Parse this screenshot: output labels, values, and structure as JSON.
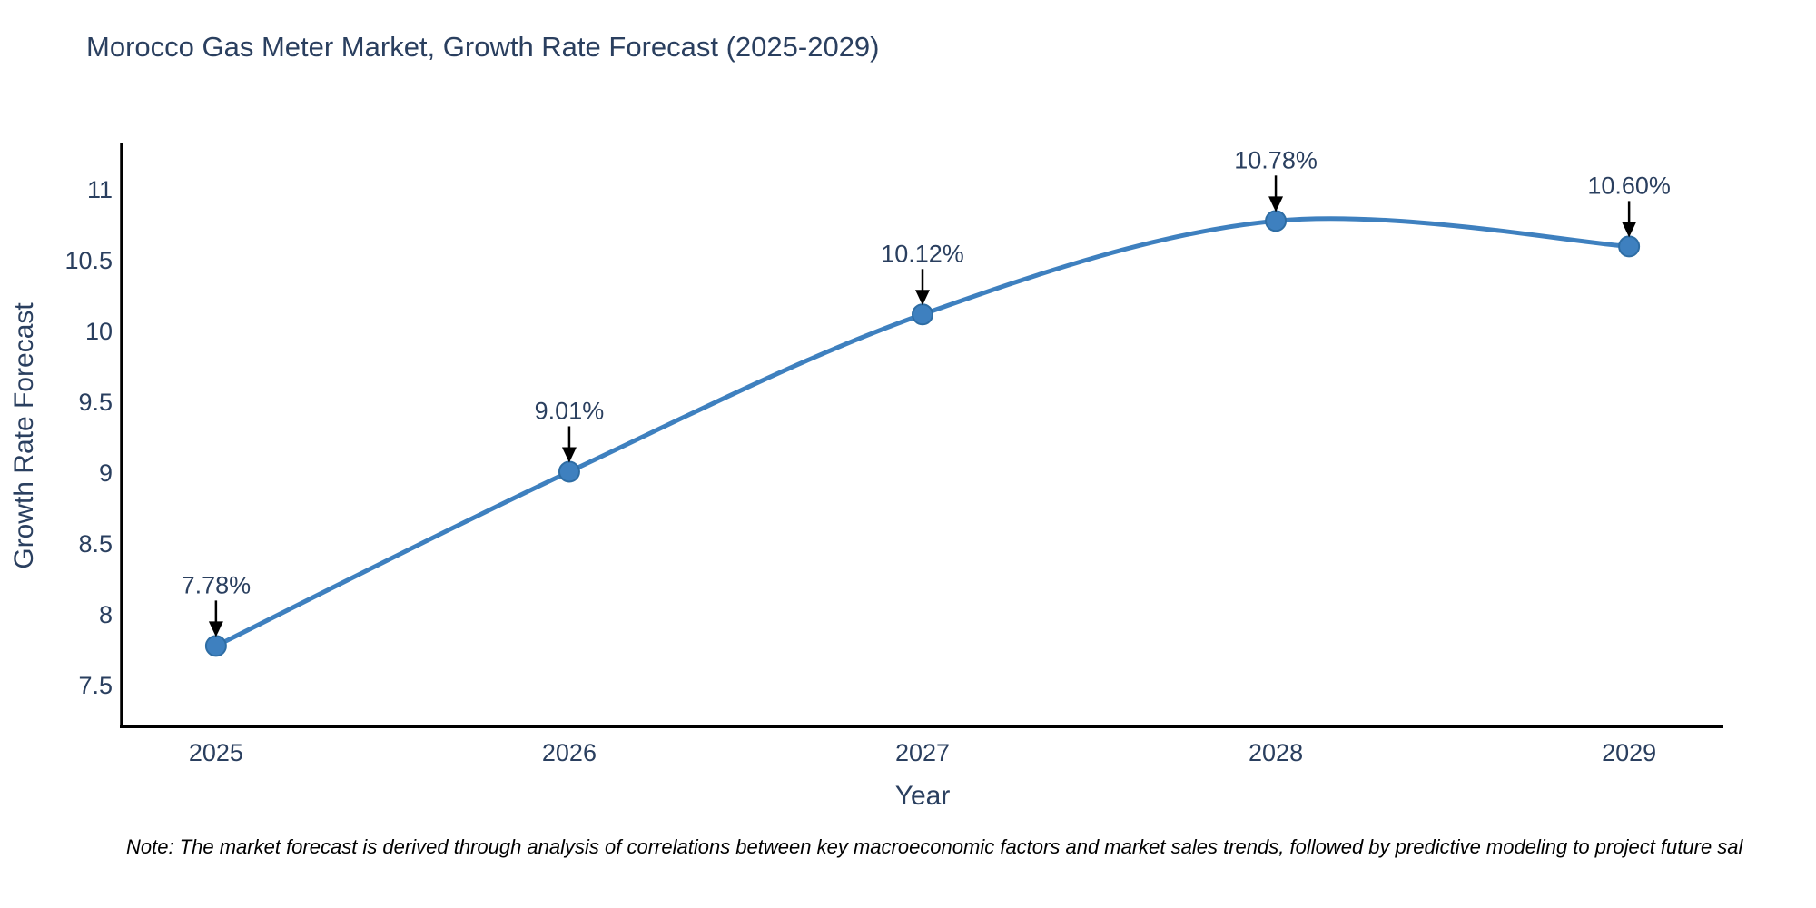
{
  "title": "Morocco Gas Meter Market, Growth Rate Forecast (2025-2029)",
  "note": "Note: The market forecast is derived through analysis of correlations between key macroeconomic factors and market sales trends, followed by predictive modeling to project future sal",
  "colors": {
    "line": "#3E80BF",
    "marker_fill": "#3E80BF",
    "marker_edge": "#2E6DA4",
    "text": "#2a3f5f",
    "axis_line": "#000000",
    "arrow": "#000000",
    "background": "#ffffff"
  },
  "chart_data": {
    "type": "line",
    "title": "Morocco Gas Meter Market, Growth Rate Forecast (2025-2029)",
    "xlabel": "Year",
    "ylabel": "Growth Rate Forecast",
    "x": [
      2025,
      2026,
      2027,
      2028,
      2029
    ],
    "values": [
      7.78,
      9.01,
      10.12,
      10.78,
      10.6
    ],
    "point_labels": [
      "7.78%",
      "9.01%",
      "10.12%",
      "10.78%",
      "10.60%"
    ],
    "xtick_labels": [
      "2025",
      "2026",
      "2027",
      "2028",
      "2029"
    ],
    "ytick_values": [
      7.5,
      8,
      8.5,
      9,
      9.5,
      10,
      10.5,
      11
    ],
    "ytick_labels": [
      "7.5",
      "8",
      "8.5",
      "9",
      "9.5",
      "10",
      "10.5",
      "11"
    ],
    "xlim": [
      2024.733,
      2029.267
    ],
    "ylim": [
      7.212,
      11.314
    ],
    "line_shape": "spline",
    "grid": false,
    "legend": false,
    "annotation_style": "down-arrow-with-label"
  }
}
